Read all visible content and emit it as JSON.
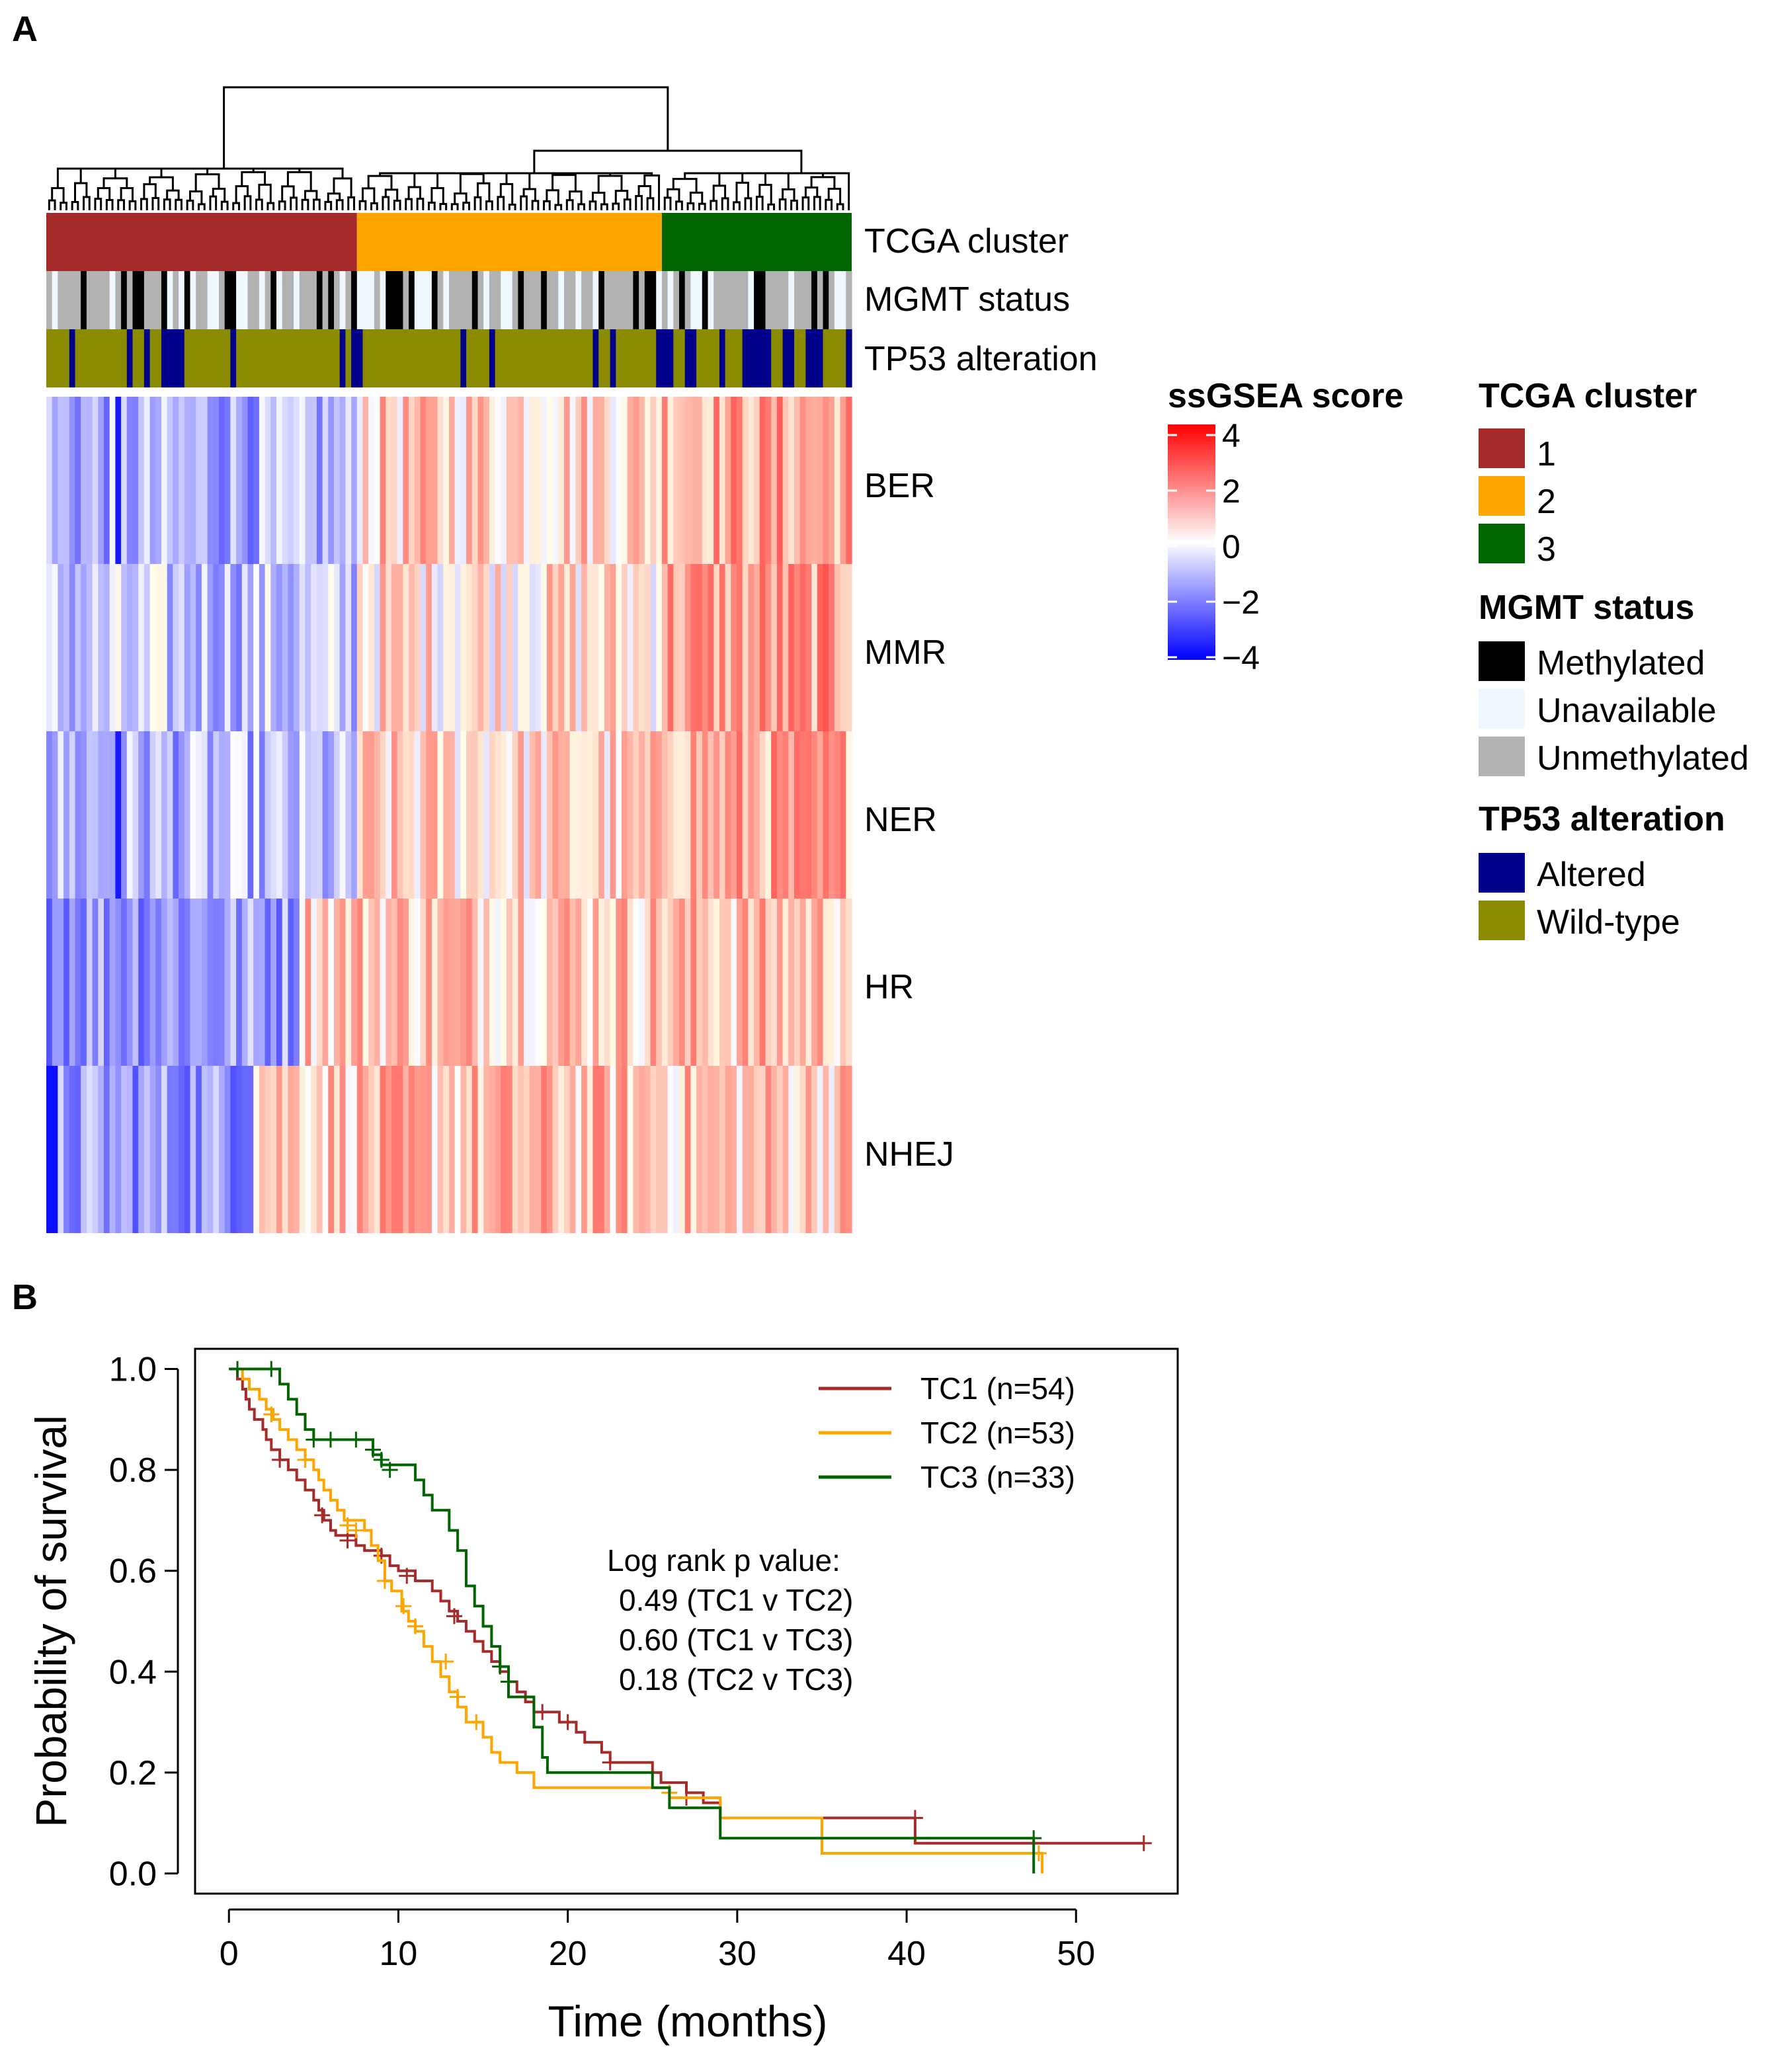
{
  "panels": {
    "a_label": "A",
    "b_label": "B"
  },
  "colors": {
    "tc1": "#A52A2A",
    "tc2": "#FFA500",
    "tc3": "#006400",
    "methylated": "#000000",
    "unavailable": "#F0F8FF",
    "unmethylated": "#B2B2B2",
    "altered": "#00008B",
    "wildtype": "#8B8B00",
    "score_low": "#0000FF",
    "score_mid": "#FFFFFF",
    "score_high": "#FF0000"
  },
  "heatmap": {
    "n_samples": 140,
    "annotation_rows": [
      "TCGA cluster",
      "MGMT status",
      "TP53 alteration"
    ],
    "pathways": [
      "BER",
      "MMR",
      "NER",
      "HR",
      "NHEJ"
    ],
    "cluster_counts": {
      "1": 54,
      "2": 53,
      "3": 33
    },
    "cluster_blocks": [
      {
        "cluster": 1,
        "start": 0,
        "end": 54
      },
      {
        "cluster": 2,
        "start": 54,
        "end": 107
      },
      {
        "cluster": 3,
        "start": 107,
        "end": 140
      }
    ]
  },
  "colorbar": {
    "title": "ssGSEA score",
    "ticks": [
      "4",
      "2",
      "0",
      "−2",
      "−4"
    ]
  },
  "legend": {
    "tcga": {
      "title": "TCGA cluster",
      "items": [
        "1",
        "2",
        "3"
      ]
    },
    "mgmt": {
      "title": "MGMT status",
      "items": [
        "Methylated",
        "Unavailable",
        "Unmethylated"
      ]
    },
    "tp53": {
      "title": "TP53 alteration",
      "items": [
        "Altered",
        "Wild-type"
      ]
    }
  },
  "chart_data": {
    "type": "line",
    "subtype": "kaplan-meier",
    "xlabel": "Time (months)",
    "ylabel": "Probability of survival",
    "xlim": [
      -2,
      56
    ],
    "ylim": [
      -0.04,
      1.04
    ],
    "xticks": [
      0,
      10,
      20,
      30,
      40,
      50
    ],
    "yticks": [
      "0.0",
      "0.2",
      "0.4",
      "0.6",
      "0.8",
      "1.0"
    ],
    "series": [
      {
        "name": "TC1 (n=54)",
        "color": "#A52A2A",
        "steps": [
          [
            0,
            1.0
          ],
          [
            0.5,
            0.98
          ],
          [
            0.8,
            0.96
          ],
          [
            1.0,
            0.94
          ],
          [
            1.2,
            0.92
          ],
          [
            1.5,
            0.9
          ],
          [
            2.0,
            0.88
          ],
          [
            2.2,
            0.86
          ],
          [
            2.5,
            0.84
          ],
          [
            3.0,
            0.82
          ],
          [
            3.5,
            0.8
          ],
          [
            4.0,
            0.78
          ],
          [
            4.5,
            0.76
          ],
          [
            5.0,
            0.74
          ],
          [
            5.3,
            0.72
          ],
          [
            5.6,
            0.7
          ],
          [
            6.0,
            0.68
          ],
          [
            6.3,
            0.67
          ],
          [
            7.5,
            0.65
          ],
          [
            8.0,
            0.64
          ],
          [
            9.0,
            0.63
          ],
          [
            9.5,
            0.61
          ],
          [
            10.0,
            0.6
          ],
          [
            11.0,
            0.58
          ],
          [
            12.0,
            0.56
          ],
          [
            12.5,
            0.54
          ],
          [
            13.0,
            0.52
          ],
          [
            13.5,
            0.5
          ],
          [
            14.0,
            0.48
          ],
          [
            14.5,
            0.46
          ],
          [
            15.0,
            0.44
          ],
          [
            15.5,
            0.42
          ],
          [
            16.0,
            0.4
          ],
          [
            16.5,
            0.38
          ],
          [
            17.0,
            0.36
          ],
          [
            17.5,
            0.34
          ],
          [
            18.0,
            0.32
          ],
          [
            19.5,
            0.3
          ],
          [
            20.5,
            0.28
          ],
          [
            21.0,
            0.26
          ],
          [
            22.0,
            0.24
          ],
          [
            22.5,
            0.22
          ],
          [
            25.0,
            0.2
          ],
          [
            25.5,
            0.18
          ],
          [
            27.0,
            0.16
          ],
          [
            28.0,
            0.14
          ],
          [
            29.0,
            0.11
          ],
          [
            40.5,
            0.06
          ],
          [
            54.0,
            0.06
          ]
        ],
        "censored": [
          [
            3.0,
            0.82
          ],
          [
            5.5,
            0.71
          ],
          [
            7.0,
            0.66
          ],
          [
            9.0,
            0.63
          ],
          [
            10.5,
            0.59
          ],
          [
            13.3,
            0.51
          ],
          [
            18.5,
            0.32
          ],
          [
            20.0,
            0.3
          ],
          [
            22.5,
            0.22
          ],
          [
            27.0,
            0.15
          ],
          [
            40.5,
            0.11
          ],
          [
            54.0,
            0.06
          ]
        ]
      },
      {
        "name": "TC2 (n=53)",
        "color": "#FFA500",
        "steps": [
          [
            0,
            1.0
          ],
          [
            0.8,
            0.98
          ],
          [
            1.2,
            0.96
          ],
          [
            1.8,
            0.94
          ],
          [
            2.2,
            0.92
          ],
          [
            2.6,
            0.9
          ],
          [
            3.0,
            0.88
          ],
          [
            3.5,
            0.86
          ],
          [
            4.0,
            0.84
          ],
          [
            4.5,
            0.82
          ],
          [
            5.0,
            0.8
          ],
          [
            5.3,
            0.78
          ],
          [
            5.6,
            0.76
          ],
          [
            6.0,
            0.74
          ],
          [
            6.4,
            0.72
          ],
          [
            6.8,
            0.7
          ],
          [
            8.0,
            0.68
          ],
          [
            8.4,
            0.65
          ],
          [
            8.8,
            0.62
          ],
          [
            9.2,
            0.58
          ],
          [
            9.6,
            0.56
          ],
          [
            10.2,
            0.52
          ],
          [
            10.6,
            0.5
          ],
          [
            11.0,
            0.48
          ],
          [
            11.5,
            0.45
          ],
          [
            12.0,
            0.42
          ],
          [
            12.5,
            0.39
          ],
          [
            13.0,
            0.36
          ],
          [
            13.5,
            0.33
          ],
          [
            14.0,
            0.3
          ],
          [
            15.0,
            0.27
          ],
          [
            15.5,
            0.24
          ],
          [
            16.0,
            0.22
          ],
          [
            17.0,
            0.2
          ],
          [
            18.0,
            0.17
          ],
          [
            26.0,
            0.15
          ],
          [
            29.0,
            0.11
          ],
          [
            35.0,
            0.04
          ],
          [
            48.0,
            0.04
          ],
          [
            48.0,
            0.0
          ]
        ],
        "censored": [
          [
            2.5,
            0.91
          ],
          [
            4.5,
            0.82
          ],
          [
            7.0,
            0.69
          ],
          [
            7.5,
            0.68
          ],
          [
            9.2,
            0.58
          ],
          [
            10.3,
            0.53
          ],
          [
            11.0,
            0.49
          ],
          [
            12.8,
            0.42
          ],
          [
            13.5,
            0.35
          ],
          [
            14.6,
            0.3
          ],
          [
            26.0,
            0.16
          ],
          [
            47.8,
            0.04
          ]
        ]
      },
      {
        "name": "TC3 (n=33)",
        "color": "#006400",
        "steps": [
          [
            0,
            1.0
          ],
          [
            3.0,
            0.97
          ],
          [
            3.5,
            0.94
          ],
          [
            4.0,
            0.91
          ],
          [
            4.5,
            0.88
          ],
          [
            5.0,
            0.86
          ],
          [
            8.5,
            0.83
          ],
          [
            9.0,
            0.81
          ],
          [
            11.0,
            0.78
          ],
          [
            11.5,
            0.75
          ],
          [
            12.0,
            0.72
          ],
          [
            13.0,
            0.68
          ],
          [
            13.5,
            0.64
          ],
          [
            14.0,
            0.57
          ],
          [
            14.5,
            0.53
          ],
          [
            15.0,
            0.49
          ],
          [
            15.5,
            0.45
          ],
          [
            16.0,
            0.41
          ],
          [
            16.5,
            0.35
          ],
          [
            18.0,
            0.29
          ],
          [
            18.5,
            0.23
          ],
          [
            18.8,
            0.2
          ],
          [
            25.0,
            0.17
          ],
          [
            26.0,
            0.13
          ],
          [
            29.0,
            0.07
          ],
          [
            47.5,
            0.07
          ],
          [
            47.5,
            0.0
          ]
        ],
        "censored": [
          [
            0.5,
            1.0
          ],
          [
            2.5,
            1.0
          ],
          [
            5.0,
            0.86
          ],
          [
            6.0,
            0.86
          ],
          [
            7.5,
            0.86
          ],
          [
            8.5,
            0.84
          ],
          [
            9.0,
            0.82
          ],
          [
            9.5,
            0.8
          ],
          [
            16.0,
            0.41
          ],
          [
            16.5,
            0.38
          ],
          [
            47.5,
            0.07
          ]
        ]
      }
    ],
    "annotation": [
      "Log rank p value:",
      "0.49 (TC1 v TC2)",
      "0.60 (TC1 v TC3)",
      "0.18 (TC2 v TC3)"
    ]
  }
}
